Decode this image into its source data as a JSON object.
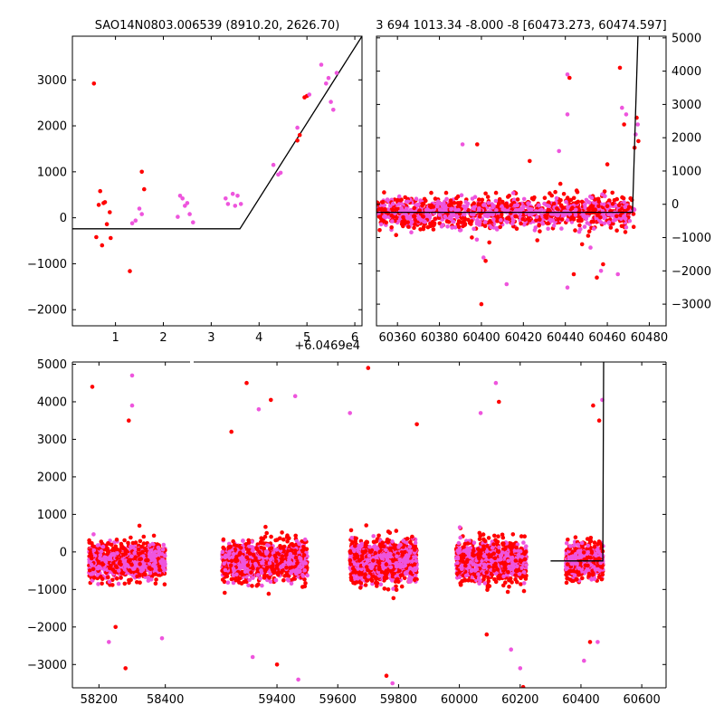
{
  "chart_data": [
    {
      "panel": "top-left",
      "type": "scatter",
      "title": "SAO14N0803.006539 (8910.20, 2626.70)",
      "x_offset_label": "+6.0469e4",
      "xlim": [
        0.1,
        6.15
      ],
      "ylim": [
        -2350,
        3950
      ],
      "xticks": [
        1,
        2,
        3,
        4,
        5,
        6
      ],
      "yticks": [
        -2000,
        -1000,
        0,
        1000,
        2000,
        3000
      ],
      "ytick_side": "left",
      "series": [
        {
          "color": "#ff0000",
          "points": [
            [
              0.55,
              2920
            ],
            [
              0.6,
              -420
            ],
            [
              0.65,
              280
            ],
            [
              0.68,
              580
            ],
            [
              0.72,
              -600
            ],
            [
              0.75,
              320
            ],
            [
              0.78,
              340
            ],
            [
              0.82,
              -140
            ],
            [
              0.88,
              120
            ],
            [
              0.9,
              -440
            ],
            [
              1.3,
              -1160
            ],
            [
              1.55,
              1000
            ],
            [
              1.6,
              620
            ],
            [
              4.8,
              1680
            ],
            [
              4.85,
              1800
            ],
            [
              4.95,
              2620
            ],
            [
              5.0,
              2650
            ]
          ]
        },
        {
          "color": "#ee55dd",
          "points": [
            [
              1.35,
              -120
            ],
            [
              1.42,
              -60
            ],
            [
              1.5,
              200
            ],
            [
              1.55,
              80
            ],
            [
              2.3,
              20
            ],
            [
              2.35,
              480
            ],
            [
              2.4,
              420
            ],
            [
              2.45,
              260
            ],
            [
              2.5,
              320
            ],
            [
              2.55,
              80
            ],
            [
              2.62,
              -100
            ],
            [
              3.3,
              420
            ],
            [
              3.35,
              300
            ],
            [
              3.45,
              520
            ],
            [
              3.5,
              260
            ],
            [
              3.55,
              480
            ],
            [
              3.62,
              300
            ],
            [
              4.3,
              1150
            ],
            [
              4.4,
              940
            ],
            [
              4.45,
              980
            ],
            [
              4.8,
              1960
            ],
            [
              5.05,
              2680
            ],
            [
              5.3,
              3330
            ],
            [
              5.4,
              2920
            ],
            [
              5.45,
              3040
            ],
            [
              5.5,
              2520
            ],
            [
              5.55,
              2350
            ],
            [
              5.62,
              3150
            ]
          ]
        }
      ],
      "fit_line": [
        [
          0.1,
          -240
        ],
        [
          3.6,
          -240
        ],
        [
          6.15,
          3950
        ]
      ]
    },
    {
      "panel": "top-right",
      "type": "scatter",
      "title": "3 694 1013.34 -8.000 -8 [60473.273, 60474.597]",
      "xlim": [
        60350,
        60488
      ],
      "ylim": [
        -3650,
        5050
      ],
      "xticks": [
        60360,
        60380,
        60400,
        60420,
        60440,
        60460,
        60480
      ],
      "yticks": [
        -3000,
        -2000,
        -1000,
        0,
        1000,
        2000,
        3000,
        4000,
        5000
      ],
      "ytick_side": "right",
      "cluster": {
        "x_range": [
          60350,
          60473
        ],
        "y_center": -250,
        "y_spread": 420
      },
      "outliers": [
        [
          60400,
          -3000
        ],
        [
          60401,
          -1600
        ],
        [
          60402,
          -1700
        ],
        [
          60441,
          3900
        ],
        [
          60442,
          3800
        ],
        [
          60441,
          2700
        ],
        [
          60444,
          -2100
        ],
        [
          60441,
          -2500
        ],
        [
          60448,
          -1200
        ],
        [
          60452,
          -1300
        ],
        [
          60455,
          -2200
        ],
        [
          60457,
          -2000
        ],
        [
          60458,
          -1800
        ],
        [
          60465,
          -2100
        ],
        [
          60466,
          4100
        ],
        [
          60467,
          2900
        ],
        [
          60468,
          2400
        ],
        [
          60469,
          2700
        ],
        [
          60473,
          1700
        ],
        [
          60473.5,
          2100
        ],
        [
          60474,
          2600
        ],
        [
          60474.5,
          2400
        ],
        [
          60474.8,
          1900
        ],
        [
          60391,
          1800
        ],
        [
          60398,
          1800
        ],
        [
          60412,
          -2400
        ],
        [
          60423,
          1300
        ],
        [
          60437,
          1600
        ],
        [
          60460,
          1200
        ]
      ],
      "fit_line": [
        [
          60350,
          -240
        ],
        [
          60472,
          -240
        ],
        [
          60474.6,
          5050
        ]
      ]
    },
    {
      "panel": "bottom",
      "type": "scatter",
      "title": "",
      "xlim": [
        58120,
        60680
      ],
      "break": {
        "gap_after": 58480,
        "gap_before": 59120
      },
      "ylim": [
        -3620,
        5060
      ],
      "xticks": [
        58200,
        58400,
        59400,
        59600,
        59800,
        60000,
        60200,
        60400,
        60600
      ],
      "yticks": [
        -3000,
        -2000,
        -1000,
        0,
        1000,
        2000,
        3000,
        4000,
        5000
      ],
      "ytick_side": "left",
      "clusters": [
        {
          "x_range": [
            58170,
            58400
          ],
          "y_center": -250,
          "y_spread": 420
        },
        {
          "x_range": [
            59220,
            59500
          ],
          "y_center": -250,
          "y_spread": 440
        },
        {
          "x_range": [
            59640,
            59860
          ],
          "y_center": -250,
          "y_spread": 460
        },
        {
          "x_range": [
            59990,
            60220
          ],
          "y_center": -250,
          "y_spread": 440
        },
        {
          "x_range": [
            60350,
            60473
          ],
          "y_center": -250,
          "y_spread": 420
        }
      ],
      "outliers": [
        [
          58180,
          4400
        ],
        [
          58300,
          4700
        ],
        [
          58290,
          3500
        ],
        [
          58300,
          3900
        ],
        [
          58250,
          -2000
        ],
        [
          58230,
          -2400
        ],
        [
          58280,
          -3100
        ],
        [
          58390,
          -2300
        ],
        [
          59300,
          4500
        ],
        [
          59340,
          3800
        ],
        [
          59380,
          4050
        ],
        [
          59460,
          4150
        ],
        [
          59250,
          3200
        ],
        [
          59320,
          -2800
        ],
        [
          59400,
          -3000
        ],
        [
          59470,
          -3400
        ],
        [
          59700,
          4900
        ],
        [
          59640,
          3700
        ],
        [
          59760,
          -3300
        ],
        [
          59780,
          -3500
        ],
        [
          59860,
          3400
        ],
        [
          60120,
          4500
        ],
        [
          60130,
          4000
        ],
        [
          60070,
          3700
        ],
        [
          60090,
          -2200
        ],
        [
          60200,
          -3100
        ],
        [
          60210,
          -3600
        ],
        [
          60170,
          -2600
        ],
        [
          60440,
          3900
        ],
        [
          60470,
          4050
        ],
        [
          60460,
          3500
        ],
        [
          60455,
          -2400
        ],
        [
          60430,
          -2400
        ],
        [
          60410,
          -2900
        ]
      ],
      "fit_line": [
        [
          60300,
          -240
        ],
        [
          60472,
          -240
        ],
        [
          60474.6,
          5060
        ]
      ]
    }
  ],
  "colors": {
    "red": "#ff0000",
    "magenta": "#ee55dd",
    "line": "#000000"
  }
}
